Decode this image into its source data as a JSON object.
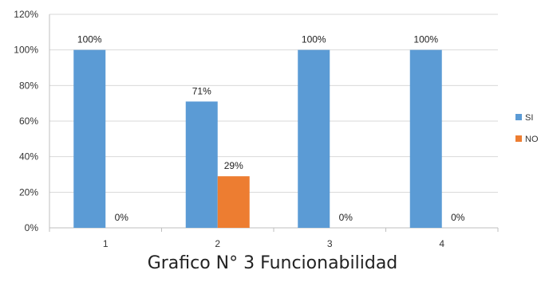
{
  "caption": "Grafico N° 3 Funcionabilidad",
  "chart_data": {
    "type": "bar",
    "categories": [
      "1",
      "2",
      "3",
      "4"
    ],
    "series": [
      {
        "name": "SI",
        "values": [
          100,
          71,
          100,
          100
        ],
        "labels": [
          "100%",
          "71%",
          "100%",
          "100%"
        ],
        "color": "#5B9BD5"
      },
      {
        "name": "NO",
        "values": [
          0,
          29,
          0,
          0
        ],
        "labels": [
          "0%",
          "29%",
          "0%",
          "0%"
        ],
        "color": "#ED7D31"
      }
    ],
    "y_ticks": [
      "0%",
      "20%",
      "40%",
      "60%",
      "80%",
      "100%",
      "120%"
    ],
    "y_tick_values": [
      0,
      20,
      40,
      60,
      80,
      100,
      120
    ],
    "ylim": [
      0,
      120
    ],
    "grid": true,
    "legend_position": "right",
    "title": "",
    "xlabel": "",
    "ylabel": ""
  }
}
